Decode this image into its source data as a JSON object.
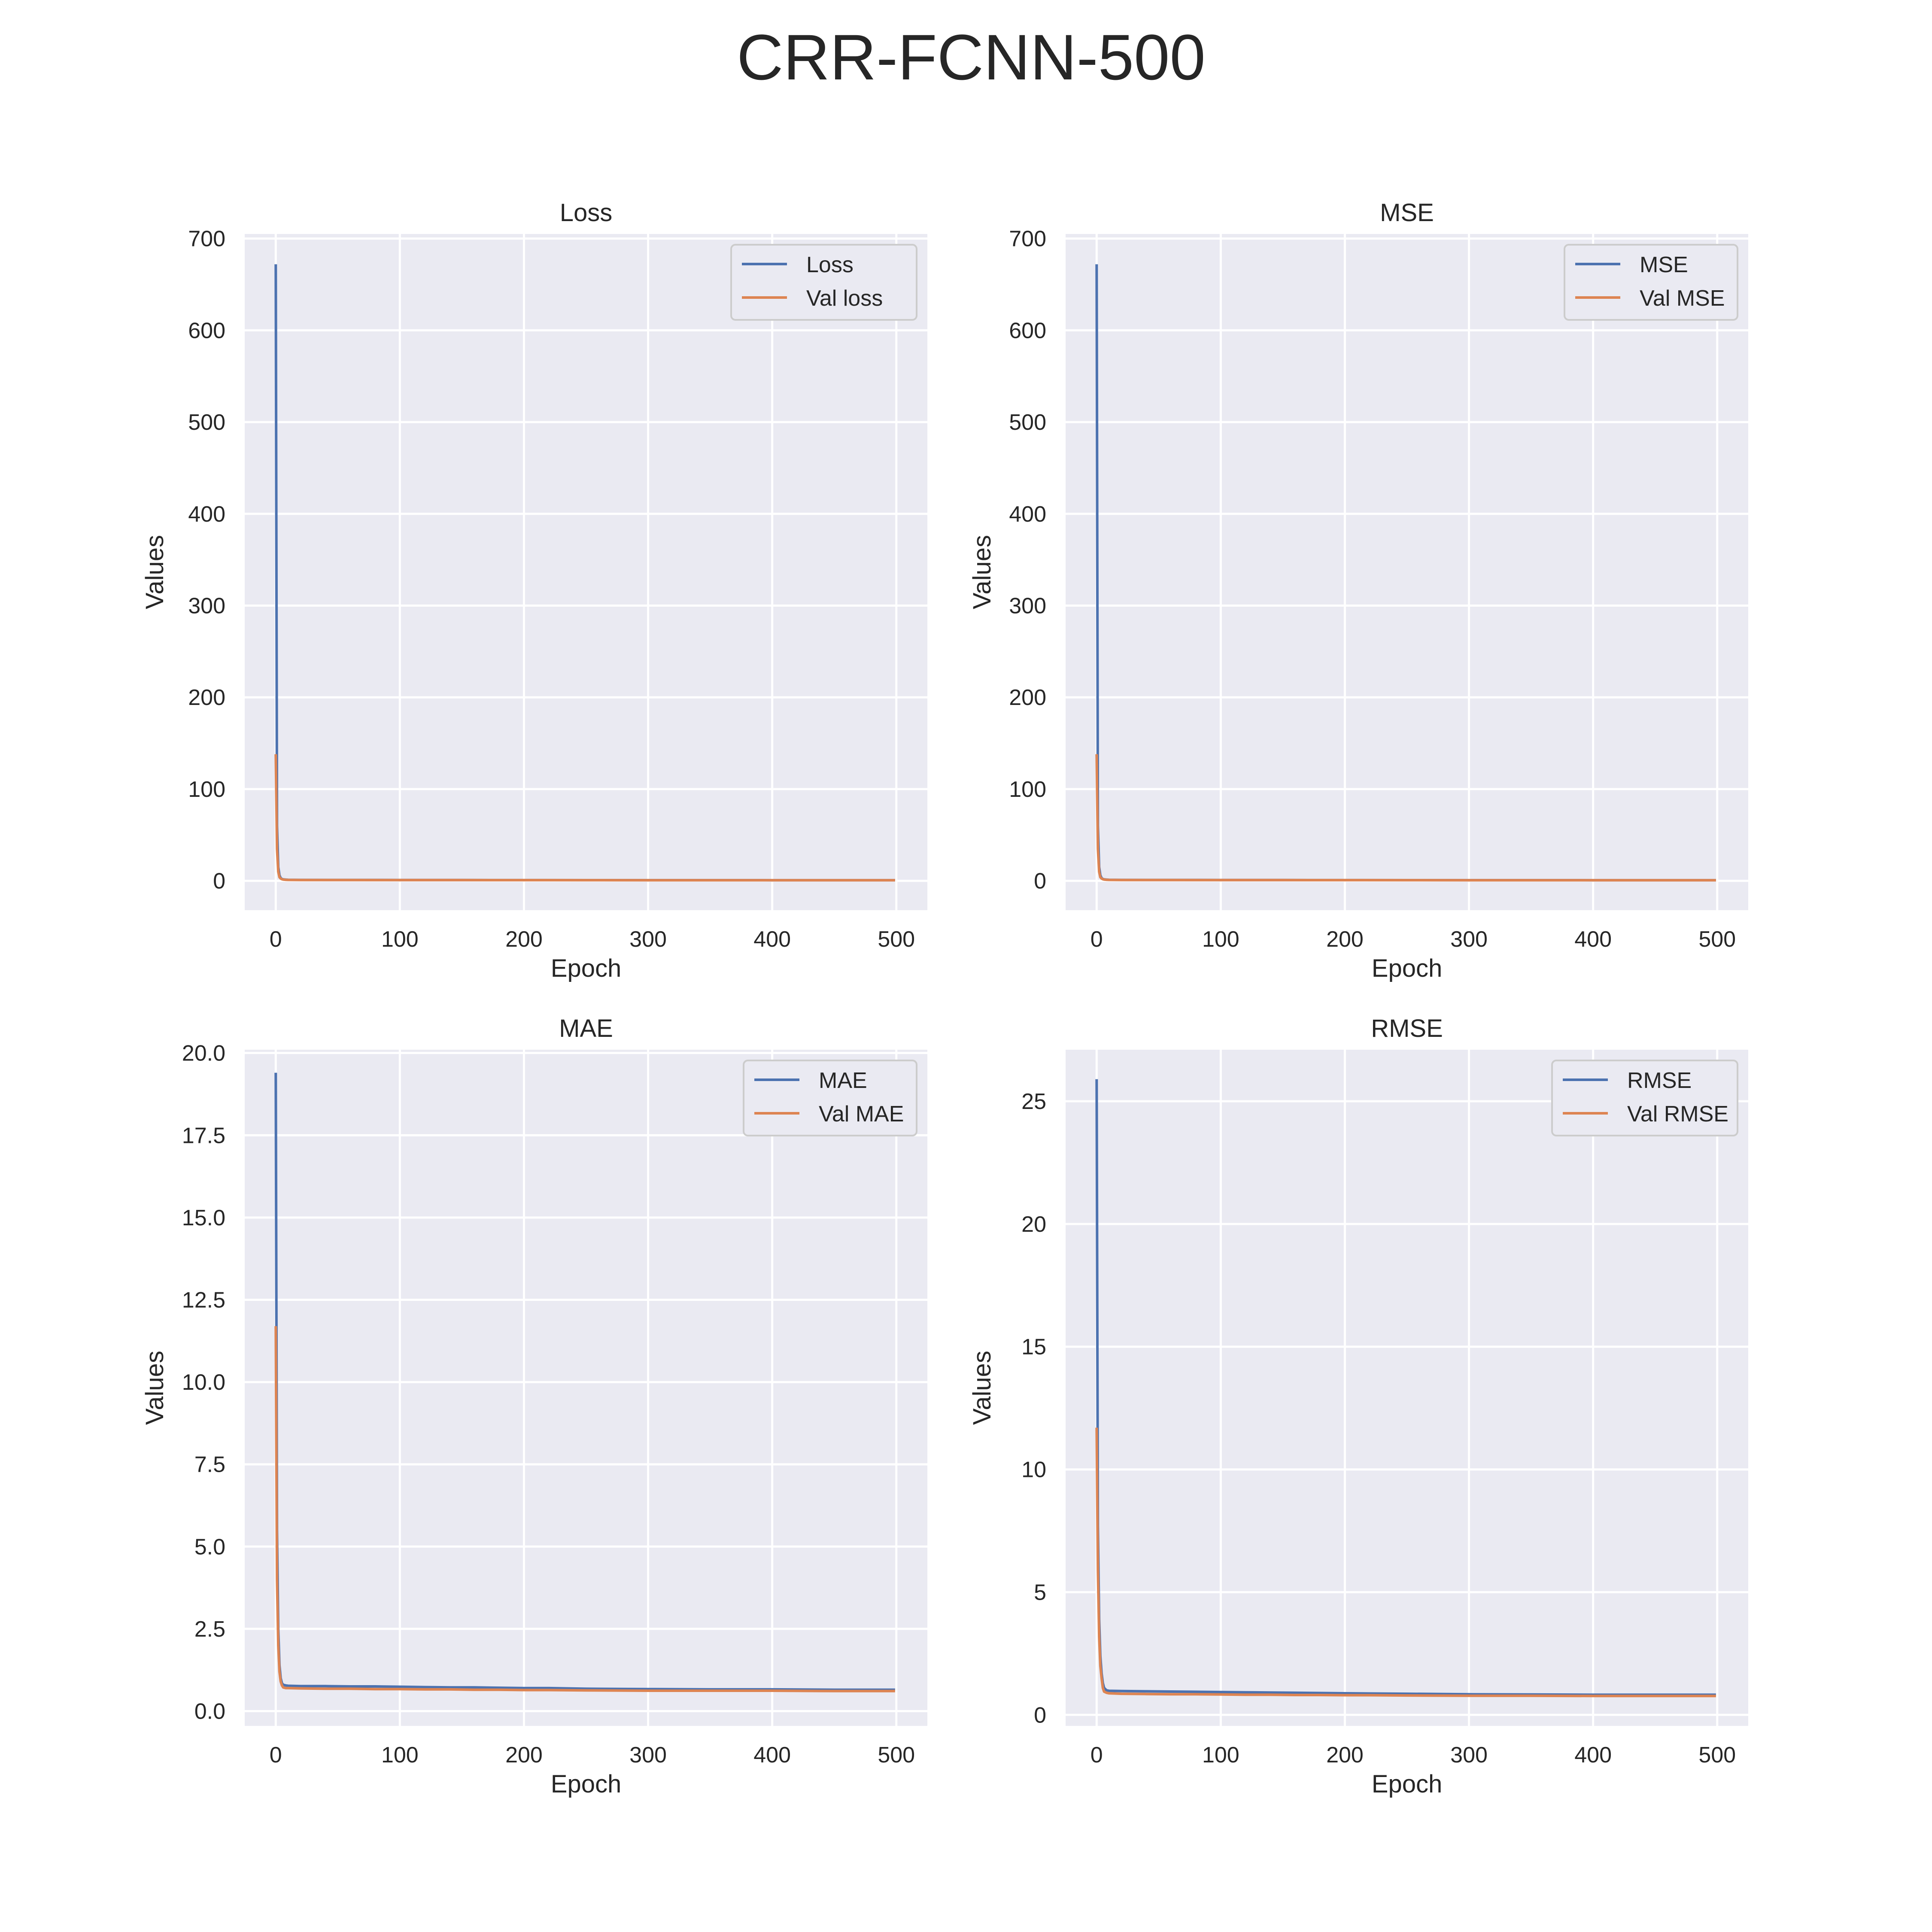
{
  "figure": {
    "title": "CRR-FCNN-500"
  },
  "colors": {
    "background": "#eaeaf2",
    "grid": "#ffffff",
    "train": "#4c72b0",
    "val": "#dd8452",
    "text": "#262626"
  },
  "chart_data": [
    {
      "type": "line",
      "title": "Loss",
      "xlabel": "Epoch",
      "ylabel": "Values",
      "xlim": [
        -25,
        525
      ],
      "ylim": [
        -32,
        705
      ],
      "xticks": [
        0,
        100,
        200,
        300,
        400,
        500
      ],
      "yticks": [
        0,
        100,
        200,
        300,
        400,
        500,
        600,
        700
      ],
      "ytick_labels": [
        "0",
        "100",
        "200",
        "300",
        "400",
        "500",
        "600",
        "700"
      ],
      "legend_position": "upper right",
      "grid": true,
      "series": [
        {
          "name": "Loss",
          "color": "#4c72b0",
          "x": [
            0,
            1,
            2,
            3,
            4,
            5,
            6,
            8,
            10,
            20,
            50,
            100,
            150,
            200,
            250,
            300,
            350,
            400,
            450,
            499
          ],
          "y": [
            672,
            60,
            15,
            6,
            3,
            2,
            1.6,
            1.3,
            1.1,
            1.0,
            0.95,
            0.9,
            0.85,
            0.8,
            0.75,
            0.7,
            0.7,
            0.68,
            0.68,
            0.67
          ]
        },
        {
          "name": "Val loss",
          "color": "#dd8452",
          "x": [
            0,
            1,
            2,
            3,
            4,
            5,
            6,
            8,
            10,
            20,
            50,
            100,
            150,
            200,
            250,
            300,
            350,
            400,
            450,
            499
          ],
          "y": [
            138,
            35,
            10,
            4,
            2.5,
            1.8,
            1.4,
            1.1,
            1.0,
            0.9,
            0.85,
            0.8,
            0.78,
            0.75,
            0.7,
            0.68,
            0.66,
            0.65,
            0.65,
            0.64
          ]
        }
      ]
    },
    {
      "type": "line",
      "title": "MSE",
      "xlabel": "Epoch",
      "ylabel": "Values",
      "xlim": [
        -25,
        525
      ],
      "ylim": [
        -32,
        705
      ],
      "xticks": [
        0,
        100,
        200,
        300,
        400,
        500
      ],
      "yticks": [
        0,
        100,
        200,
        300,
        400,
        500,
        600,
        700
      ],
      "ytick_labels": [
        "0",
        "100",
        "200",
        "300",
        "400",
        "500",
        "600",
        "700"
      ],
      "legend_position": "upper right",
      "grid": true,
      "series": [
        {
          "name": "MSE",
          "color": "#4c72b0",
          "x": [
            0,
            1,
            2,
            3,
            4,
            5,
            6,
            8,
            10,
            20,
            50,
            100,
            150,
            200,
            250,
            300,
            350,
            400,
            450,
            499
          ],
          "y": [
            672,
            60,
            15,
            6,
            3,
            2,
            1.6,
            1.3,
            1.1,
            1.0,
            0.95,
            0.9,
            0.85,
            0.8,
            0.75,
            0.7,
            0.7,
            0.68,
            0.68,
            0.67
          ]
        },
        {
          "name": "Val MSE",
          "color": "#dd8452",
          "x": [
            0,
            1,
            2,
            3,
            4,
            5,
            6,
            8,
            10,
            20,
            50,
            100,
            150,
            200,
            250,
            300,
            350,
            400,
            450,
            499
          ],
          "y": [
            138,
            35,
            10,
            4,
            2.5,
            1.8,
            1.4,
            1.1,
            1.0,
            0.9,
            0.85,
            0.8,
            0.78,
            0.75,
            0.7,
            0.68,
            0.66,
            0.65,
            0.65,
            0.64
          ]
        }
      ]
    },
    {
      "type": "line",
      "title": "MAE",
      "xlabel": "Epoch",
      "ylabel": "Values",
      "xlim": [
        -25,
        525
      ],
      "ylim": [
        -0.45,
        20.1
      ],
      "xticks": [
        0,
        100,
        200,
        300,
        400,
        500
      ],
      "yticks": [
        0,
        2.5,
        5,
        7.5,
        10,
        12.5,
        15,
        17.5,
        20
      ],
      "ytick_labels": [
        "0.0",
        "2.5",
        "5.0",
        "7.5",
        "10.0",
        "12.5",
        "15.0",
        "17.5",
        "20.0"
      ],
      "legend_position": "upper right",
      "grid": true,
      "series": [
        {
          "name": "MAE",
          "color": "#4c72b0",
          "x": [
            0,
            1,
            2,
            3,
            4,
            5,
            6,
            8,
            10,
            20,
            40,
            60,
            80,
            100,
            120,
            140,
            160,
            180,
            200,
            220,
            250,
            300,
            350,
            400,
            450,
            499
          ],
          "y": [
            19.4,
            5.5,
            2.5,
            1.4,
            1.0,
            0.85,
            0.8,
            0.78,
            0.77,
            0.76,
            0.76,
            0.75,
            0.75,
            0.74,
            0.73,
            0.72,
            0.72,
            0.71,
            0.7,
            0.7,
            0.68,
            0.67,
            0.66,
            0.66,
            0.65,
            0.65
          ]
        },
        {
          "name": "Val MAE",
          "color": "#dd8452",
          "x": [
            0,
            1,
            2,
            3,
            4,
            5,
            6,
            8,
            10,
            20,
            40,
            60,
            80,
            100,
            120,
            140,
            160,
            180,
            200,
            220,
            250,
            300,
            350,
            400,
            450,
            499
          ],
          "y": [
            11.7,
            4.0,
            2.0,
            1.2,
            0.9,
            0.78,
            0.72,
            0.7,
            0.7,
            0.69,
            0.68,
            0.68,
            0.67,
            0.67,
            0.66,
            0.66,
            0.65,
            0.65,
            0.64,
            0.64,
            0.63,
            0.62,
            0.62,
            0.62,
            0.61,
            0.61
          ]
        }
      ]
    },
    {
      "type": "line",
      "title": "RMSE",
      "xlabel": "Epoch",
      "ylabel": "Values",
      "xlim": [
        -25,
        525
      ],
      "ylim": [
        -0.45,
        27.1
      ],
      "xticks": [
        0,
        100,
        200,
        300,
        400,
        500
      ],
      "yticks": [
        0,
        5,
        10,
        15,
        20,
        25
      ],
      "ytick_labels": [
        "0",
        "5",
        "10",
        "15",
        "20",
        "25"
      ],
      "legend_position": "upper right",
      "grid": true,
      "series": [
        {
          "name": "RMSE",
          "color": "#4c72b0",
          "x": [
            0,
            1,
            2,
            3,
            4,
            5,
            6,
            8,
            10,
            20,
            40,
            60,
            80,
            100,
            120,
            140,
            160,
            180,
            200,
            220,
            250,
            300,
            350,
            400,
            450,
            499
          ],
          "y": [
            25.9,
            7.7,
            3.9,
            2.4,
            1.7,
            1.3,
            1.1,
            1.0,
            0.98,
            0.97,
            0.96,
            0.95,
            0.94,
            0.93,
            0.92,
            0.91,
            0.9,
            0.89,
            0.88,
            0.87,
            0.86,
            0.84,
            0.83,
            0.82,
            0.82,
            0.82
          ]
        },
        {
          "name": "Val RMSE",
          "color": "#dd8452",
          "x": [
            0,
            1,
            2,
            3,
            4,
            5,
            6,
            8,
            10,
            20,
            40,
            60,
            80,
            100,
            120,
            140,
            160,
            180,
            200,
            220,
            250,
            300,
            350,
            400,
            450,
            499
          ],
          "y": [
            11.7,
            5.9,
            3.2,
            2.0,
            1.5,
            1.1,
            0.95,
            0.9,
            0.88,
            0.86,
            0.85,
            0.84,
            0.84,
            0.83,
            0.82,
            0.82,
            0.81,
            0.81,
            0.8,
            0.8,
            0.79,
            0.78,
            0.78,
            0.77,
            0.77,
            0.77
          ]
        }
      ]
    }
  ]
}
